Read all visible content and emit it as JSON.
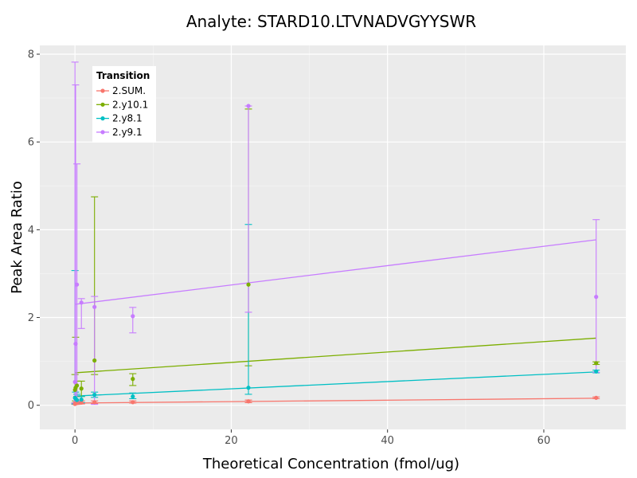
{
  "chart_data": {
    "type": "scatter",
    "title": "Analyte: STARD10.LTVNADVGYYSWR",
    "xlabel": "Theoretical Concentration (fmol/ug)",
    "ylabel": "Peak Area Ratio",
    "xlim": [
      -4.5,
      70.5
    ],
    "ylim": [
      -0.55,
      8.2
    ],
    "x_ticks": [
      0,
      20,
      40,
      60
    ],
    "y_ticks": [
      0,
      2,
      4,
      6,
      8
    ],
    "grid": true,
    "legend": {
      "title": "Transition",
      "position": "top-left"
    },
    "series": [
      {
        "name": "2.SUM.",
        "color": "#F8766D",
        "points": [
          {
            "x": 0,
            "y": 0.03,
            "lo": 0.02,
            "hi": 0.05
          },
          {
            "x": 0.08,
            "y": 0.04,
            "lo": 0.02,
            "hi": 0.06
          },
          {
            "x": 0.25,
            "y": 0.05,
            "lo": 0.02,
            "hi": 0.08
          },
          {
            "x": 0.82,
            "y": 0.06,
            "lo": 0.03,
            "hi": 0.1
          },
          {
            "x": 2.5,
            "y": 0.07,
            "lo": 0.04,
            "hi": 0.1
          },
          {
            "x": 7.4,
            "y": 0.07,
            "lo": 0.05,
            "hi": 0.1
          },
          {
            "x": 22.2,
            "y": 0.09,
            "lo": 0.06,
            "hi": 0.12
          },
          {
            "x": 66.7,
            "y": 0.17,
            "lo": 0.15,
            "hi": 0.19
          }
        ],
        "fit": [
          [
            0,
            0.05
          ],
          [
            66.7,
            0.16
          ]
        ]
      },
      {
        "name": "2.y10.1",
        "color": "#7CAE00",
        "points": [
          {
            "x": 0,
            "y": 0.35,
            "lo": 0.05,
            "hi": 0.7
          },
          {
            "x": 0.08,
            "y": 0.4,
            "lo": 0.1,
            "hi": 1.55
          },
          {
            "x": 0.25,
            "y": 0.45,
            "lo": 0.2,
            "hi": 0.55
          },
          {
            "x": 0.82,
            "y": 0.38,
            "lo": 0.2,
            "hi": 0.55
          },
          {
            "x": 2.5,
            "y": 1.02,
            "lo": 0.7,
            "hi": 4.75
          },
          {
            "x": 7.4,
            "y": 0.6,
            "lo": 0.45,
            "hi": 0.72
          },
          {
            "x": 22.2,
            "y": 2.75,
            "lo": 0.9,
            "hi": 6.75
          },
          {
            "x": 66.7,
            "y": 0.96,
            "lo": 0.93,
            "hi": 0.99
          }
        ],
        "fit": [
          [
            0,
            0.74
          ],
          [
            66.7,
            1.53
          ]
        ]
      },
      {
        "name": "2.y8.1",
        "color": "#00BFC4",
        "points": [
          {
            "x": 0,
            "y": 0.17,
            "lo": 0.03,
            "hi": 3.07
          },
          {
            "x": 0.08,
            "y": 0.15,
            "lo": 0.05,
            "hi": 0.3
          },
          {
            "x": 0.25,
            "y": 0.12,
            "lo": 0.05,
            "hi": 0.25
          },
          {
            "x": 0.82,
            "y": 0.13,
            "lo": 0.06,
            "hi": 0.2
          },
          {
            "x": 2.5,
            "y": 0.24,
            "lo": 0.18,
            "hi": 0.3
          },
          {
            "x": 7.4,
            "y": 0.2,
            "lo": 0.15,
            "hi": 0.28
          },
          {
            "x": 22.2,
            "y": 0.4,
            "lo": 0.25,
            "hi": 4.12
          },
          {
            "x": 66.7,
            "y": 0.77,
            "lo": 0.74,
            "hi": 0.8
          }
        ],
        "fit": [
          [
            0,
            0.21
          ],
          [
            66.7,
            0.76
          ]
        ]
      },
      {
        "name": "2.y9.1",
        "color": "#C77CFF",
        "points": [
          {
            "x": 0,
            "y": 0.53,
            "lo": 0.05,
            "hi": 7.82
          },
          {
            "x": 0.08,
            "y": 1.4,
            "lo": 0.05,
            "hi": 7.3
          },
          {
            "x": 0.25,
            "y": 2.75,
            "lo": 0.1,
            "hi": 5.5
          },
          {
            "x": 0.82,
            "y": 2.34,
            "lo": 1.75,
            "hi": 2.43
          },
          {
            "x": 2.5,
            "y": 2.24,
            "lo": 0.02,
            "hi": 2.48
          },
          {
            "x": 7.4,
            "y": 2.03,
            "lo": 1.65,
            "hi": 2.23
          },
          {
            "x": 22.2,
            "y": 6.82,
            "lo": 2.12,
            "hi": 6.82
          },
          {
            "x": 66.7,
            "y": 2.47,
            "lo": 0.75,
            "hi": 4.23
          }
        ],
        "fit": [
          [
            0,
            2.3
          ],
          [
            66.7,
            3.77
          ]
        ]
      }
    ]
  }
}
